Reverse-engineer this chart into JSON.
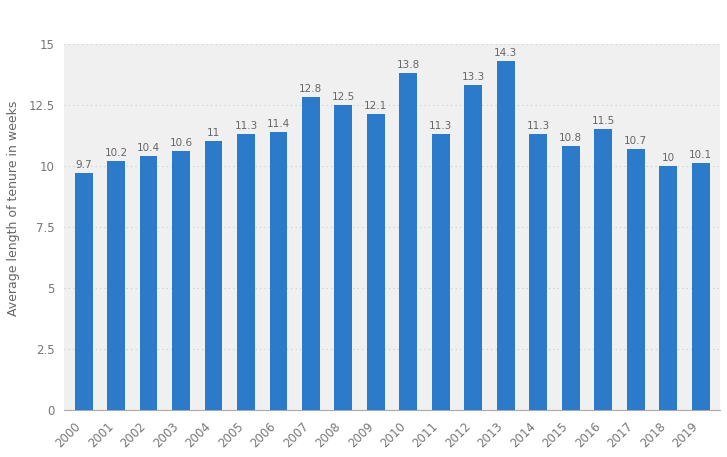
{
  "years": [
    "2000",
    "2001",
    "2002",
    "2003",
    "2004",
    "2005",
    "2006",
    "2007",
    "2008",
    "2009",
    "2010",
    "2011",
    "2012",
    "2013",
    "2014",
    "2015",
    "2016",
    "2017",
    "2018",
    "2019"
  ],
  "values": [
    9.7,
    10.2,
    10.4,
    10.6,
    11.0,
    11.3,
    11.4,
    12.8,
    12.5,
    12.1,
    13.8,
    11.3,
    13.3,
    14.3,
    11.3,
    10.8,
    11.5,
    10.7,
    10.0,
    10.1
  ],
  "bar_color": "#2b7bca",
  "ylabel": "Average length of tenure in weeks",
  "yticks": [
    0,
    2.5,
    5,
    7.5,
    10,
    12.5,
    15
  ],
  "ytick_labels": [
    "0",
    "2.5",
    "5",
    "7.5",
    "10",
    "12.5",
    "15"
  ],
  "ylim": [
    0,
    16.5
  ],
  "plot_bg_color": "#f0f0f0",
  "outer_bg_color": "#ffffff",
  "grid_color": "#cccccc",
  "label_fontsize": 8.5,
  "bar_label_fontsize": 7.5,
  "ylabel_fontsize": 9,
  "bar_width": 0.55
}
